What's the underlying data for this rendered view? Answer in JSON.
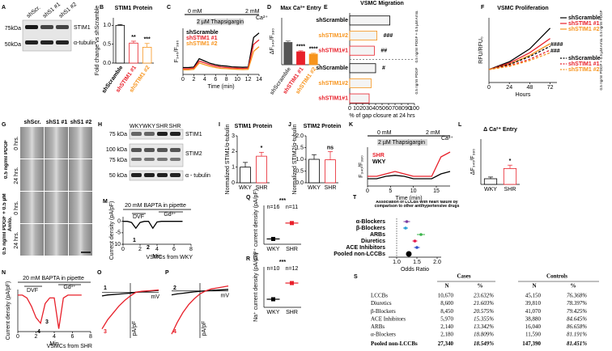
{
  "panels": {
    "A": {
      "label": "A",
      "lanes": [
        "shScr.",
        "shS1 #1",
        "shS1 #2"
      ],
      "markers": [
        "75kDa",
        "50kDa"
      ],
      "bands": [
        "STIM1",
        "α-tubulin"
      ]
    },
    "G": {
      "label": "G",
      "columns": [
        "shScr.",
        "shS1 #1",
        "shS1 #2"
      ],
      "rows": [
        "0 hrs.",
        "24 hrs.",
        "0 hrs.",
        "24 hrs."
      ],
      "groups": [
        "0.5 ng/ml PDGF",
        "0.5 ng/ml PDGF + 0.5 µM Amlo."
      ]
    },
    "H": {
      "label": "H",
      "lanes": [
        "WKY",
        "WKY",
        "SHR",
        "SHR"
      ],
      "markers": [
        "75 kDa",
        "100 kDa",
        "75 kDa",
        "50 kDa"
      ],
      "bands": [
        "STIM1",
        "STIM2",
        "α - tubulin"
      ]
    },
    "S": {
      "label": "S",
      "headers": [
        "Cases",
        "Controls"
      ],
      "subheaders": [
        "N",
        "%",
        "N",
        "%"
      ],
      "rows": [
        [
          "LCCBs",
          "10,670",
          "23.632%",
          "45,150",
          "76.368%"
        ],
        [
          "Diuretics",
          "8,600",
          "21.603%",
          "39,810",
          "78.397%"
        ],
        [
          "β-Blockers",
          "8,450",
          "20.575%",
          "41,070",
          "79.425%"
        ],
        [
          "ACE Inhibitors",
          "5,970",
          "15.355%",
          "38,880",
          "84.645%"
        ],
        [
          "ARBs",
          "2,140",
          "13.342%",
          "16,040",
          "86.658%"
        ],
        [
          "α-Blockers",
          "2,180",
          "18.809%",
          "11,590",
          "81.191%"
        ],
        [
          "Pooled non-LCCBs",
          "27,340",
          "18.549%",
          "147,390",
          "81.451%"
        ]
      ]
    }
  },
  "chart_data": [
    {
      "type": "bar",
      "label": "B",
      "title": "STIM1 Protein",
      "ylabel": "Fold change vs shScramble",
      "categories": [
        "shScramble",
        "shSTIM1 #1",
        "shSTIM1 #2"
      ],
      "values": [
        1.0,
        0.53,
        0.42
      ],
      "errors": [
        0.02,
        0.05,
        0.1
      ],
      "colors": [
        "#000000",
        "#e8202a",
        "#f7941d"
      ],
      "annotations": [
        null,
        "**",
        "***"
      ],
      "filled": false,
      "ylim": [
        0,
        1.2
      ],
      "yticks": [
        {
          "value": 0,
          "label": "0.0"
        },
        {
          "value": 0.5,
          "label": "0.5"
        },
        {
          "value": 1,
          "label": "1.0"
        }
      ]
    },
    {
      "type": "line",
      "label": "C",
      "xlabel": "Time (min)",
      "ylabel": "F₃₄₀/F₃₈₀",
      "notes": [
        "0 mM",
        "2 mM",
        "Ca²⁺",
        "2 µM Thapsigargin"
      ],
      "x": [
        0,
        1,
        2,
        3,
        4,
        5,
        6,
        7,
        8,
        9,
        10,
        11,
        12,
        13,
        14
      ],
      "series": [
        {
          "name": "shScramble",
          "color": "#000000",
          "values": [
            0.6,
            0.6,
            0.62,
            0.98,
            0.88,
            0.78,
            0.72,
            0.68,
            0.66,
            0.63,
            0.62,
            0.61,
            0.62,
            1.9,
            2.1
          ]
        },
        {
          "name": "shSTIM1 #1",
          "color": "#e8202a",
          "values": [
            0.55,
            0.55,
            0.57,
            0.88,
            0.8,
            0.72,
            0.66,
            0.62,
            0.6,
            0.58,
            0.57,
            0.56,
            0.57,
            1.6,
            1.8
          ]
        },
        {
          "name": "shSTIM1 #2",
          "color": "#f7941d",
          "values": [
            0.5,
            0.5,
            0.52,
            0.8,
            0.72,
            0.65,
            0.6,
            0.56,
            0.55,
            0.53,
            0.52,
            0.51,
            0.52,
            1.3,
            1.5
          ]
        }
      ],
      "xlim": [
        0,
        14
      ],
      "xticks": [
        0,
        2,
        4,
        6,
        8,
        10,
        12,
        14
      ],
      "ylim": [
        0.3,
        2.3
      ]
    },
    {
      "type": "bar",
      "label": "D",
      "title": "Max Ca²⁺ Entry",
      "ylabel": "ΔF₃₄₀/F₃₈₀",
      "categories": [
        "shScramble",
        "shSTIM1 #1",
        "shSTIM1 #2"
      ],
      "values": [
        0.95,
        0.55,
        0.45
      ],
      "errors": [
        0.06,
        0.04,
        0.04
      ],
      "colors": [
        "#555555",
        "#e8202a",
        "#f7941d"
      ],
      "annotations": [
        null,
        "****",
        "****"
      ],
      "filled": true,
      "ylim": [
        0,
        2
      ]
    },
    {
      "type": "hbar",
      "label": "E",
      "title": "VSMC Migration",
      "xlabel": "% of gap closure at 24 hrs",
      "categories": [
        "shScramble",
        "shSTIM1#2",
        "shSTIM1#1",
        "shScramble",
        "shSTIM1#2",
        "shSTIM1#1"
      ],
      "values": [
        62,
        42,
        38,
        40,
        33,
        30
      ],
      "colors": [
        "#000000",
        "#f7941d",
        "#e8202a",
        "#000000",
        "#f7941d",
        "#e8202a"
      ],
      "annotations": [
        null,
        "###",
        "##",
        "#",
        null,
        null
      ],
      "groups": [
        "0.5 ng/ml PDGF + 0.5 µM Amlo.",
        "0.5 ng/ml PDGF"
      ],
      "xlim": [
        0,
        100
      ],
      "xticks": [
        0,
        10,
        20,
        30,
        40,
        50,
        60,
        70,
        80,
        90,
        100
      ]
    },
    {
      "type": "line",
      "label": "F",
      "title": "VSMC Proliferation",
      "xlabel": "Hours",
      "ylabel": "RFU/RFU₀",
      "notes": [
        "####",
        "###"
      ],
      "groups": [
        "0.5 ng/ml PDGF",
        "0.5 ng/ml PDGF + 0.5 µM Amlo."
      ],
      "x": [
        0,
        24,
        48,
        72
      ],
      "series": [
        {
          "name": "shScramble",
          "color": "#000000",
          "values": [
            1,
            1.6,
            2.6,
            4.2
          ]
        },
        {
          "name": "shSTIM1 #1",
          "color": "#e8202a",
          "values": [
            1,
            1.5,
            2.3,
            3.4
          ]
        },
        {
          "name": "shSTIM1 #2",
          "color": "#f7941d",
          "values": [
            1,
            1.4,
            2.1,
            3.0
          ]
        },
        {
          "name": "shScramble",
          "color": "#000000",
          "dash": true,
          "values": [
            1,
            1.4,
            2.0,
            2.8
          ]
        },
        {
          "name": "shSTIM1 #1",
          "color": "#e8202a",
          "dash": true,
          "values": [
            1,
            1.3,
            1.8,
            2.5
          ]
        },
        {
          "name": "shSTIM1 #2",
          "color": "#f7941d",
          "dash": true,
          "values": [
            1,
            1.25,
            1.7,
            2.3
          ]
        }
      ],
      "xlim": [
        0,
        80
      ],
      "xticks": [
        0,
        24,
        48,
        72
      ],
      "ylim": [
        0,
        5
      ]
    },
    {
      "type": "bar",
      "label": "I",
      "title": "STIM1 Protein",
      "ylabel": "Normalized STIM1/α-tubulin",
      "categories": [
        "WKY",
        "SHR"
      ],
      "values": [
        1.0,
        1.7
      ],
      "errors": [
        0.3,
        0.25
      ],
      "colors": [
        "#000000",
        "#e8202a"
      ],
      "annotations": [
        null,
        "*"
      ],
      "filled": false,
      "ylim": [
        0,
        3
      ],
      "yticks": [
        0,
        1,
        2,
        3
      ]
    },
    {
      "type": "bar",
      "label": "J",
      "title": "STIM2 Protein",
      "ylabel": "Normalized STIM2/α-tubulin",
      "categories": [
        "WKY",
        "SHR"
      ],
      "values": [
        1.0,
        0.98
      ],
      "errors": [
        0.2,
        0.35
      ],
      "colors": [
        "#000000",
        "#e8202a"
      ],
      "annotations": [
        null,
        "ns"
      ],
      "filled": false,
      "ylim": [
        0,
        2
      ],
      "yticks": [
        {
          "value": 0,
          "label": "0.0"
        },
        {
          "value": 0.5,
          "label": "0.5"
        },
        {
          "value": 1,
          "label": "1.0"
        },
        {
          "value": 1.5,
          "label": "1.5"
        },
        {
          "value": 2,
          "label": "2.0"
        }
      ]
    },
    {
      "type": "line",
      "label": "K",
      "xlabel": "Time (min)",
      "ylabel": "F₃₄₀/F₃₈₀",
      "notes": [
        "0 mM",
        "2 mM",
        "Ca²⁺",
        "2 µM Thapsigargin"
      ],
      "x": [
        0,
        2,
        4,
        6,
        8,
        10,
        12,
        14,
        16,
        18
      ],
      "series": [
        {
          "name": "SHR",
          "color": "#e8202a",
          "values": [
            0.5,
            0.5,
            0.55,
            0.6,
            0.55,
            0.5,
            0.5,
            0.5,
            0.9,
            1.0
          ]
        },
        {
          "name": "WKY",
          "color": "#000000",
          "values": [
            0.45,
            0.45,
            0.5,
            0.52,
            0.5,
            0.45,
            0.45,
            0.45,
            0.55,
            0.6
          ]
        }
      ],
      "xlim": [
        0,
        18
      ],
      "xticks": [
        0,
        5,
        10,
        15
      ],
      "ylim": [
        0.3,
        1.1
      ]
    },
    {
      "type": "bar",
      "label": "L",
      "title": "Δ Ca²⁺ Entry",
      "ylabel": "ΔF₃₄₀/F₃₈₀",
      "categories": [
        "WKY",
        "SHR"
      ],
      "values": [
        0.1,
        0.28
      ],
      "errors": [
        0.03,
        0.06
      ],
      "colors": [
        "#000000",
        "#e8202a"
      ],
      "annotations": [
        null,
        "*"
      ],
      "filled": false,
      "ylim": [
        0,
        0.8
      ]
    },
    {
      "type": "line",
      "label": "M",
      "xlabel": "Min",
      "ylabel": "Current density (pA/pF)",
      "notes": [
        "20 mM BAPTA in pipette",
        "DVF",
        "Gd³⁺",
        "1",
        "2",
        "VSMCs from WKY"
      ],
      "x": [
        0,
        0.5,
        1,
        1.5,
        2,
        2.5,
        3,
        3.5,
        4,
        4.5,
        5,
        5.5,
        6,
        6.5,
        7
      ],
      "series": [
        {
          "name": "WKY",
          "color": "#000000",
          "values": [
            0,
            0,
            -0.5,
            -3,
            -0.5,
            0,
            0,
            -3,
            -0.3,
            0,
            0,
            0,
            0,
            0,
            0
          ]
        }
      ],
      "xlim": [
        0,
        8
      ],
      "xticks": [
        0,
        2,
        4,
        6,
        8
      ],
      "ylim": [
        -10,
        2
      ],
      "yticks": [
        -10,
        -5,
        0
      ]
    },
    {
      "type": "line",
      "label": "N",
      "xlabel": "Min",
      "ylabel": "Current density (pA/pF)",
      "notes": [
        "20 mM BAPTA in pipette",
        "DVF",
        "Gd³⁺",
        "3",
        "4",
        "VSMCs from SHR"
      ],
      "x": [
        0,
        0.5,
        1,
        1.5,
        2,
        2.5,
        3,
        3.5,
        4,
        4.5,
        5,
        5.5,
        6,
        6.5,
        7
      ],
      "series": [
        {
          "name": "SHR",
          "color": "#e8202a",
          "values": [
            0,
            0,
            -1,
            -4,
            -8,
            -10,
            -3,
            -1,
            -1,
            -12,
            -1,
            0,
            0,
            0,
            0
          ]
        }
      ],
      "xlim": [
        0,
        8
      ],
      "xticks": [
        0,
        2,
        4,
        6,
        8
      ],
      "ylim": [
        -13,
        2
      ]
    },
    {
      "type": "line",
      "label": "O",
      "xlabel": "mV",
      "ylabel": "pA/pF",
      "x": [
        -100,
        -80,
        -60,
        -40,
        -20,
        0,
        20,
        40,
        60,
        80,
        100
      ],
      "series": [
        {
          "name": "1",
          "color": "#000000",
          "values": [
            -0.08,
            -0.06,
            -0.05,
            -0.04,
            -0.03,
            -0.02,
            0,
            0.01,
            0.02,
            0.03,
            0.04
          ]
        },
        {
          "name": "3",
          "color": "#e8202a",
          "values": [
            -0.8,
            -0.6,
            -0.45,
            -0.3,
            -0.18,
            -0.08,
            0,
            0.02,
            0.03,
            0.04,
            0.05
          ]
        }
      ],
      "xlim": [
        -100,
        100
      ],
      "ylim": [
        -1,
        0.2
      ]
    },
    {
      "type": "line",
      "label": "P",
      "xlabel": "mV",
      "ylabel": "pA/pF",
      "x": [
        -100,
        -80,
        -60,
        -40,
        -20,
        0,
        20,
        40,
        60,
        80,
        100
      ],
      "series": [
        {
          "name": "2",
          "color": "#000000",
          "values": [
            -0.2,
            -0.15,
            -0.12,
            -0.08,
            -0.05,
            -0.02,
            0,
            0.02,
            0.04,
            0.06,
            0.08
          ]
        },
        {
          "name": "4",
          "color": "#e8202a",
          "values": [
            -2.2,
            -1.6,
            -1.1,
            -0.7,
            -0.4,
            -0.15,
            0,
            0.1,
            0.15,
            0.2,
            0.25
          ]
        }
      ],
      "xlim": [
        -100,
        100
      ],
      "ylim": [
        -2.4,
        0.4
      ]
    },
    {
      "type": "dot",
      "label": "Q",
      "ylabel": "Ca²⁺ current density (pA/pF)",
      "sig": "***",
      "categories": [
        "WKY",
        "SHR"
      ],
      "values": [
        1,
        10
      ],
      "n_labels": [
        "n=16",
        "n=11"
      ],
      "colors": [
        "#000000",
        "#e8202a"
      ],
      "ylim": [
        -2,
        20
      ]
    },
    {
      "type": "dot",
      "label": "R",
      "ylabel": "Na⁺ current density (pA/pF)",
      "sig": "***",
      "categories": [
        "WKY",
        "SHR"
      ],
      "values": [
        2,
        8
      ],
      "n_labels": [
        "n=10",
        "n=12"
      ],
      "colors": [
        "#000000",
        "#e8202a"
      ],
      "ylim": [
        -1,
        14
      ]
    },
    {
      "type": "forest",
      "label": "T",
      "title": "Association of LCCBs with heart failure by comparison to other antihypertensive drugs",
      "xlabel": "Odds Ratio",
      "categories": [
        "α-Blockers",
        "β-Blockers",
        "ARBs",
        "Diuretics",
        "ACE Inhibitors",
        "Pooled non-LCCBs"
      ],
      "values": [
        1.25,
        1.22,
        1.6,
        1.45,
        1.5,
        1.3
      ],
      "errors": [
        0.08,
        0.06,
        0.1,
        0.06,
        0.07,
        0.04
      ],
      "colors": [
        "#7b3fa0",
        "#2a9fd6",
        "#3cb44b",
        "#e6194b",
        "#3050c8",
        "#000000"
      ],
      "xlim": [
        0.8,
        2.1
      ],
      "xticks": [
        {
          "value": 1,
          "label": "1.0"
        },
        {
          "value": 1.5,
          "label": "1.5"
        },
        {
          "value": 2,
          "label": "2.0"
        }
      ]
    }
  ]
}
